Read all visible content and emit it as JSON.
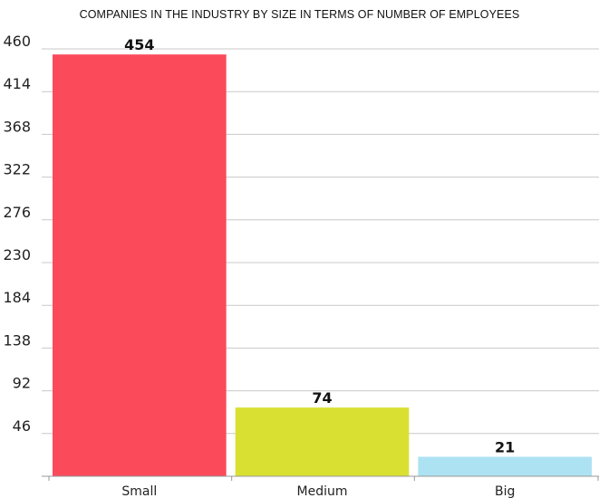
{
  "chart_data": {
    "type": "bar",
    "title": "COMPANIES IN THE INDUSTRY BY SIZE IN TERMS OF NUMBER OF EMPLOYEES",
    "xlabel": "",
    "ylabel": "",
    "categories": [
      "Small",
      "Medium",
      "Big"
    ],
    "values": [
      454,
      74,
      21
    ],
    "value_labels": [
      "454",
      "74",
      "21"
    ],
    "yticks": [
      46,
      92,
      138,
      184,
      230,
      276,
      322,
      368,
      414,
      460
    ],
    "ytick_labels": [
      "46",
      "92",
      "138",
      "184",
      "230",
      "276",
      "322",
      "368",
      "414",
      "460"
    ],
    "ylim": [
      0,
      460
    ],
    "grid": true,
    "legend": "none",
    "colors": [
      "#fb4b5b",
      "#d9e032",
      "#ade2f3"
    ]
  }
}
